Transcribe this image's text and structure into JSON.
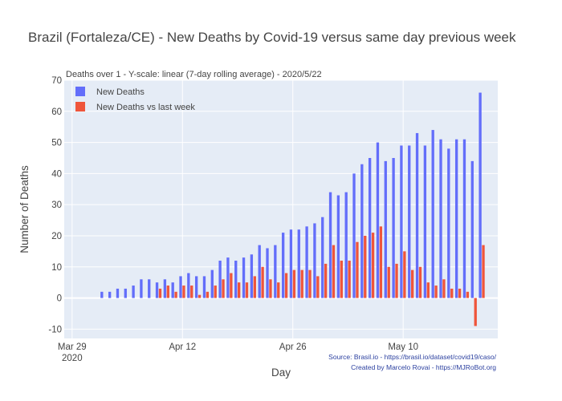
{
  "chart_data": {
    "type": "bar",
    "title": "Brazil (Fortaleza/CE) - New Deaths by Covid-19 versus same day previous week",
    "subtitle": "Deaths over 1 - Y-scale: linear (7-day rolling average) - 2020/5/22",
    "xlabel": "Day",
    "ylabel": "Number of Deaths",
    "ylim": [
      -13,
      70
    ],
    "y_ticks": [
      -10,
      0,
      10,
      20,
      30,
      40,
      50,
      60,
      70
    ],
    "x_ticks": [
      {
        "date": "2020-03-29",
        "label": "Mar 29",
        "sublabel": "2020"
      },
      {
        "date": "2020-04-12",
        "label": "Apr 12",
        "sublabel": ""
      },
      {
        "date": "2020-04-26",
        "label": "Apr 26",
        "sublabel": ""
      },
      {
        "date": "2020-05-10",
        "label": "May 10",
        "sublabel": ""
      }
    ],
    "xlim": [
      "2020-03-28",
      "2020-05-22"
    ],
    "grid": true,
    "legend_position": "top-left",
    "x": [
      "2020-03-29",
      "2020-03-30",
      "2020-03-31",
      "2020-04-01",
      "2020-04-02",
      "2020-04-03",
      "2020-04-04",
      "2020-04-05",
      "2020-04-06",
      "2020-04-07",
      "2020-04-08",
      "2020-04-09",
      "2020-04-10",
      "2020-04-11",
      "2020-04-12",
      "2020-04-13",
      "2020-04-14",
      "2020-04-15",
      "2020-04-16",
      "2020-04-17",
      "2020-04-18",
      "2020-04-19",
      "2020-04-20",
      "2020-04-21",
      "2020-04-22",
      "2020-04-23",
      "2020-04-24",
      "2020-04-25",
      "2020-04-26",
      "2020-04-27",
      "2020-04-28",
      "2020-04-29",
      "2020-04-30",
      "2020-05-01",
      "2020-05-02",
      "2020-05-03",
      "2020-05-04",
      "2020-05-05",
      "2020-05-06",
      "2020-05-07",
      "2020-05-08",
      "2020-05-09",
      "2020-05-10",
      "2020-05-11",
      "2020-05-12",
      "2020-05-13",
      "2020-05-14",
      "2020-05-15",
      "2020-05-16",
      "2020-05-17",
      "2020-05-18",
      "2020-05-19",
      "2020-05-20",
      "2020-05-21"
    ],
    "series": [
      {
        "name": "New Deaths",
        "color": "#636efa",
        "values": [
          0,
          0,
          0,
          0,
          2,
          2,
          3,
          3,
          4,
          6,
          6,
          5,
          6,
          5,
          7,
          8,
          7,
          7,
          9,
          12,
          13,
          12,
          13,
          14,
          17,
          16,
          17,
          21,
          22,
          22,
          23,
          24,
          26,
          34,
          33,
          34,
          40,
          43,
          45,
          50,
          44,
          45,
          49,
          49,
          53,
          49,
          54,
          51,
          48,
          51,
          51,
          44,
          66,
          null
        ]
      },
      {
        "name": "New Deaths vs last week",
        "color": "#ef553b",
        "values": [
          0,
          0,
          0,
          0,
          0,
          0,
          0,
          0,
          0,
          0,
          0,
          3,
          4,
          2,
          4,
          4,
          1,
          2,
          4,
          6,
          8,
          5,
          5,
          7,
          10,
          6,
          5,
          8,
          9,
          9,
          9,
          7,
          11,
          17,
          12,
          12,
          18,
          20,
          21,
          23,
          10,
          11,
          15,
          9,
          10,
          5,
          4,
          6,
          3,
          3,
          2,
          -9,
          17,
          null
        ]
      }
    ],
    "annotations": [
      "Source: Brasil.io - https://brasil.io/dataset/covid19/caso/",
      "Created by Marcelo Rovai - https://MJRoBot.org"
    ]
  }
}
